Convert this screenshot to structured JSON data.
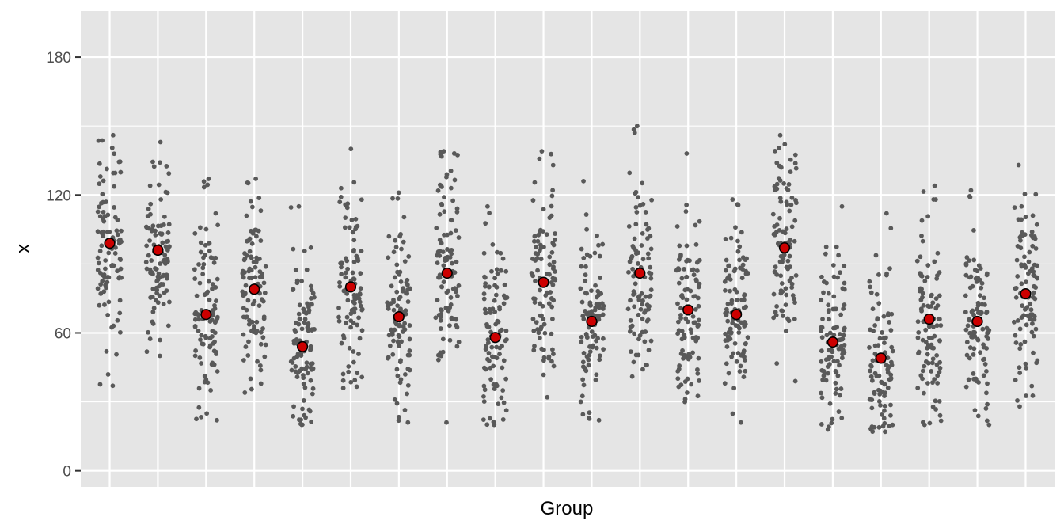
{
  "chart_data": {
    "type": "scatter",
    "subtype": "jittered strip plot with group means",
    "title": "",
    "xlabel": "Group",
    "ylabel": "x",
    "ylim": [
      -7,
      200
    ],
    "y_ticks": [
      0,
      60,
      120,
      180
    ],
    "x_tick_labels_shown": false,
    "n_groups": 20,
    "points_per_group": 100,
    "grid": true,
    "legend": "none",
    "colors": {
      "panel_background": "#e5e5e5",
      "grid": "#ffffff",
      "point": "#595959",
      "mean_fill": "#cc0000",
      "mean_stroke": "#000000"
    },
    "groups": [
      {
        "group": 1,
        "mean": 99,
        "min": 37,
        "max": 146
      },
      {
        "group": 2,
        "mean": 96,
        "min": 50,
        "max": 143
      },
      {
        "group": 3,
        "mean": 68,
        "min": 22,
        "max": 127
      },
      {
        "group": 4,
        "mean": 79,
        "min": 34,
        "max": 127
      },
      {
        "group": 5,
        "mean": 54,
        "min": 20,
        "max": 115
      },
      {
        "group": 6,
        "mean": 80,
        "min": 36,
        "max": 140
      },
      {
        "group": 7,
        "mean": 67,
        "min": 21,
        "max": 121
      },
      {
        "group": 8,
        "mean": 86,
        "min": 21,
        "max": 139
      },
      {
        "group": 9,
        "mean": 58,
        "min": 20,
        "max": 115
      },
      {
        "group": 10,
        "mean": 82,
        "min": 32,
        "max": 139
      },
      {
        "group": 11,
        "mean": 65,
        "min": 22,
        "max": 126
      },
      {
        "group": 12,
        "mean": 86,
        "min": 41,
        "max": 150
      },
      {
        "group": 13,
        "mean": 70,
        "min": 30,
        "max": 138
      },
      {
        "group": 14,
        "mean": 68,
        "min": 21,
        "max": 118
      },
      {
        "group": 15,
        "mean": 97,
        "min": 39,
        "max": 146
      },
      {
        "group": 16,
        "mean": 56,
        "min": 18,
        "max": 115
      },
      {
        "group": 17,
        "mean": 49,
        "min": 17,
        "max": 112
      },
      {
        "group": 18,
        "mean": 66,
        "min": 20,
        "max": 124
      },
      {
        "group": 19,
        "mean": 65,
        "min": 20,
        "max": 122
      },
      {
        "group": 20,
        "mean": 77,
        "min": 28,
        "max": 133
      }
    ]
  }
}
